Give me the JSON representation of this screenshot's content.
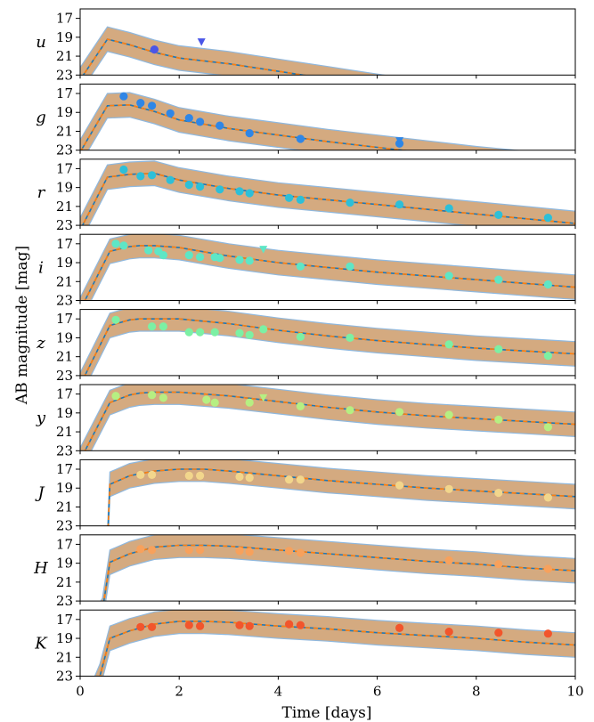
{
  "chart_data": {
    "type": "line",
    "xlabel": "Time [days]",
    "ylabel": "AB magnitude [mag]",
    "xlim": [
      0,
      10
    ],
    "ylim": [
      23,
      16
    ],
    "x_ticks": [
      "0",
      "2",
      "4",
      "6",
      "8",
      "10"
    ],
    "y_ticks": [
      "17",
      "19",
      "21",
      "23"
    ],
    "colors": {
      "model_line_dark": "#1f77b4",
      "model_line_orange": "#ff7f0e",
      "band_fill": "#cd9b6a",
      "band_edge": "#8fb8de"
    },
    "panels": [
      {
        "band": "u",
        "color": "#4a56e8",
        "model": {
          "x": [
            0,
            0.55,
            1.0,
            1.5,
            2.0,
            3.0,
            4.0,
            5.0,
            6.0,
            7.0,
            8.0,
            9.0,
            10.0
          ],
          "y": [
            23.5,
            19.2,
            19.8,
            20.6,
            21.2,
            21.8,
            22.6,
            23.4,
            24.2,
            25.0,
            25.8,
            26.6,
            27.4
          ]
        },
        "detections": [
          {
            "x": 1.5,
            "y": 20.3
          }
        ],
        "upper_limits": [
          {
            "x": 2.45,
            "y": 19.5
          }
        ]
      },
      {
        "band": "g",
        "color": "#2f86e6",
        "model": {
          "x": [
            0,
            0.55,
            1.0,
            1.5,
            2.0,
            3.0,
            4.0,
            5.0,
            6.0,
            7.0,
            8.0,
            9.0,
            10.0
          ],
          "y": [
            23.2,
            18.3,
            18.2,
            18.9,
            19.8,
            20.7,
            21.4,
            22.1,
            22.7,
            23.3,
            23.9,
            24.4,
            24.9
          ]
        },
        "detections": [
          {
            "x": 0.88,
            "y": 17.3
          },
          {
            "x": 1.22,
            "y": 18.0
          },
          {
            "x": 1.45,
            "y": 18.3
          },
          {
            "x": 1.82,
            "y": 19.1
          },
          {
            "x": 2.2,
            "y": 19.6
          },
          {
            "x": 2.42,
            "y": 20.0
          },
          {
            "x": 2.82,
            "y": 20.4
          },
          {
            "x": 3.42,
            "y": 21.2
          },
          {
            "x": 4.45,
            "y": 21.8
          },
          {
            "x": 6.45,
            "y": 22.3
          }
        ],
        "upper_limits": [
          {
            "x": 6.45,
            "y": 22.0
          }
        ]
      },
      {
        "band": "r",
        "color": "#2dbfd8",
        "model": {
          "x": [
            0,
            0.55,
            1.0,
            1.5,
            2.0,
            3.0,
            4.0,
            5.0,
            6.0,
            7.0,
            8.0,
            9.0,
            10.0
          ],
          "y": [
            23.5,
            17.9,
            17.6,
            17.5,
            18.2,
            19.1,
            19.8,
            20.3,
            20.8,
            21.3,
            21.8,
            22.3,
            22.8
          ]
        },
        "detections": [
          {
            "x": 0.88,
            "y": 17.1
          },
          {
            "x": 1.22,
            "y": 17.8
          },
          {
            "x": 1.45,
            "y": 17.7
          },
          {
            "x": 1.82,
            "y": 18.2
          },
          {
            "x": 2.2,
            "y": 18.7
          },
          {
            "x": 2.42,
            "y": 18.9
          },
          {
            "x": 2.82,
            "y": 19.2
          },
          {
            "x": 3.22,
            "y": 19.4
          },
          {
            "x": 3.42,
            "y": 19.6
          },
          {
            "x": 4.22,
            "y": 20.1
          },
          {
            "x": 4.45,
            "y": 20.3
          },
          {
            "x": 5.45,
            "y": 20.6
          },
          {
            "x": 6.45,
            "y": 20.8
          },
          {
            "x": 7.45,
            "y": 21.2
          },
          {
            "x": 8.45,
            "y": 21.9
          },
          {
            "x": 9.45,
            "y": 22.2
          }
        ],
        "upper_limits": []
      },
      {
        "band": "i",
        "color": "#5ee6c6",
        "model": {
          "x": [
            0,
            0.6,
            1.0,
            1.2,
            1.5,
            2.0,
            3.0,
            4.0,
            5.0,
            6.0,
            7.0,
            8.0,
            9.0,
            10.0
          ],
          "y": [
            24.0,
            17.8,
            17.3,
            17.2,
            17.2,
            17.4,
            18.3,
            19.0,
            19.5,
            20.0,
            20.4,
            20.8,
            21.2,
            21.6
          ]
        },
        "detections": [
          {
            "x": 0.72,
            "y": 17.0
          },
          {
            "x": 0.88,
            "y": 17.2
          },
          {
            "x": 1.38,
            "y": 17.7
          },
          {
            "x": 1.58,
            "y": 17.8
          },
          {
            "x": 1.68,
            "y": 18.2
          },
          {
            "x": 2.2,
            "y": 18.2
          },
          {
            "x": 2.42,
            "y": 18.4
          },
          {
            "x": 2.72,
            "y": 18.4
          },
          {
            "x": 2.82,
            "y": 18.5
          },
          {
            "x": 3.22,
            "y": 18.7
          },
          {
            "x": 3.42,
            "y": 18.8
          },
          {
            "x": 4.45,
            "y": 19.4
          },
          {
            "x": 5.45,
            "y": 19.4
          },
          {
            "x": 7.45,
            "y": 20.4
          },
          {
            "x": 8.45,
            "y": 20.8
          },
          {
            "x": 9.45,
            "y": 21.3
          }
        ],
        "upper_limits": [
          {
            "x": 3.7,
            "y": 17.6
          }
        ]
      },
      {
        "band": "z",
        "color": "#7cf0a4",
        "model": {
          "x": [
            0,
            0.6,
            1.0,
            1.2,
            1.5,
            2.0,
            3.0,
            4.0,
            5.0,
            6.0,
            7.0,
            8.0,
            9.0,
            10.0
          ],
          "y": [
            24.0,
            17.7,
            17.1,
            17.0,
            17.0,
            17.0,
            17.5,
            18.2,
            18.8,
            19.3,
            19.7,
            20.1,
            20.4,
            20.7
          ]
        },
        "detections": [
          {
            "x": 0.72,
            "y": 17.1
          },
          {
            "x": 1.45,
            "y": 17.8
          },
          {
            "x": 1.68,
            "y": 17.8
          },
          {
            "x": 2.2,
            "y": 18.4
          },
          {
            "x": 2.42,
            "y": 18.4
          },
          {
            "x": 2.72,
            "y": 18.4
          },
          {
            "x": 3.22,
            "y": 18.5
          },
          {
            "x": 3.42,
            "y": 18.7
          },
          {
            "x": 3.7,
            "y": 18.1
          },
          {
            "x": 4.45,
            "y": 18.9
          },
          {
            "x": 5.45,
            "y": 19.0
          },
          {
            "x": 7.45,
            "y": 19.7
          },
          {
            "x": 8.45,
            "y": 20.2
          },
          {
            "x": 9.45,
            "y": 20.9
          }
        ],
        "upper_limits": []
      },
      {
        "band": "y",
        "color": "#b6ef82",
        "model": {
          "x": [
            0,
            0.6,
            1.0,
            1.2,
            1.5,
            2.0,
            3.0,
            4.0,
            5.0,
            6.0,
            7.0,
            8.0,
            9.0,
            10.0
          ],
          "y": [
            24.0,
            17.9,
            17.1,
            16.9,
            16.8,
            16.8,
            17.2,
            17.8,
            18.4,
            18.9,
            19.3,
            19.6,
            19.9,
            20.2
          ]
        },
        "detections": [
          {
            "x": 0.72,
            "y": 17.2
          },
          {
            "x": 1.45,
            "y": 17.1
          },
          {
            "x": 1.68,
            "y": 17.4
          },
          {
            "x": 2.55,
            "y": 17.6
          },
          {
            "x": 2.72,
            "y": 17.9
          },
          {
            "x": 3.42,
            "y": 17.9
          },
          {
            "x": 4.45,
            "y": 18.3
          },
          {
            "x": 5.45,
            "y": 18.7
          },
          {
            "x": 6.45,
            "y": 18.9
          },
          {
            "x": 7.45,
            "y": 19.2
          },
          {
            "x": 8.45,
            "y": 19.7
          },
          {
            "x": 9.45,
            "y": 20.5
          }
        ],
        "upper_limits": [
          {
            "x": 3.7,
            "y": 17.4
          }
        ]
      },
      {
        "band": "J",
        "color": "#f2d68c",
        "model": {
          "x": [
            0,
            0.55,
            0.6,
            1.0,
            1.5,
            2.0,
            2.5,
            3.0,
            4.0,
            5.0,
            6.0,
            7.0,
            8.0,
            9.0,
            10.0
          ],
          "y": [
            28.0,
            25.0,
            18.6,
            17.7,
            17.2,
            17.0,
            17.0,
            17.2,
            17.7,
            18.2,
            18.6,
            19.0,
            19.3,
            19.6,
            19.9
          ]
        },
        "detections": [
          {
            "x": 1.22,
            "y": 17.6
          },
          {
            "x": 1.45,
            "y": 17.6
          },
          {
            "x": 2.2,
            "y": 17.7
          },
          {
            "x": 2.42,
            "y": 17.7
          },
          {
            "x": 3.22,
            "y": 17.8
          },
          {
            "x": 3.42,
            "y": 17.9
          },
          {
            "x": 4.22,
            "y": 18.1
          },
          {
            "x": 4.45,
            "y": 18.1
          },
          {
            "x": 6.45,
            "y": 18.7
          },
          {
            "x": 7.45,
            "y": 19.1
          },
          {
            "x": 8.45,
            "y": 19.5
          },
          {
            "x": 9.45,
            "y": 20.0
          }
        ],
        "upper_limits": []
      },
      {
        "band": "H",
        "color": "#f7a15c",
        "model": {
          "x": [
            0,
            0.45,
            0.6,
            1.0,
            1.5,
            2.0,
            2.5,
            3.0,
            4.0,
            5.0,
            6.0,
            7.0,
            8.0,
            9.0,
            10.0
          ],
          "y": [
            28.0,
            24.0,
            18.9,
            18.0,
            17.3,
            17.1,
            17.1,
            17.2,
            17.6,
            18.0,
            18.4,
            18.8,
            19.1,
            19.5,
            19.8
          ]
        },
        "detections": [
          {
            "x": 1.22,
            "y": 17.5
          },
          {
            "x": 1.45,
            "y": 17.6
          },
          {
            "x": 2.2,
            "y": 17.6
          },
          {
            "x": 2.42,
            "y": 17.6
          },
          {
            "x": 3.22,
            "y": 17.7
          },
          {
            "x": 3.42,
            "y": 17.8
          },
          {
            "x": 4.22,
            "y": 17.7
          },
          {
            "x": 4.45,
            "y": 17.9
          },
          {
            "x": 7.45,
            "y": 18.7
          },
          {
            "x": 8.45,
            "y": 19.1
          },
          {
            "x": 9.45,
            "y": 19.6
          }
        ],
        "upper_limits": []
      },
      {
        "band": "K",
        "color": "#f2552c",
        "model": {
          "x": [
            0,
            0.4,
            0.6,
            1.0,
            1.5,
            2.0,
            2.5,
            3.0,
            4.0,
            5.0,
            6.0,
            7.0,
            8.0,
            9.0,
            10.0
          ],
          "y": [
            28.0,
            23.0,
            19.0,
            18.2,
            17.5,
            17.2,
            17.2,
            17.3,
            17.7,
            18.0,
            18.4,
            18.7,
            19.0,
            19.4,
            19.7
          ]
        },
        "detections": [
          {
            "x": 1.22,
            "y": 17.8
          },
          {
            "x": 1.45,
            "y": 17.8
          },
          {
            "x": 2.2,
            "y": 17.6
          },
          {
            "x": 2.42,
            "y": 17.7
          },
          {
            "x": 3.22,
            "y": 17.6
          },
          {
            "x": 3.42,
            "y": 17.7
          },
          {
            "x": 4.22,
            "y": 17.5
          },
          {
            "x": 4.45,
            "y": 17.6
          },
          {
            "x": 6.45,
            "y": 17.9
          },
          {
            "x": 7.45,
            "y": 18.3
          },
          {
            "x": 8.45,
            "y": 18.4
          },
          {
            "x": 9.45,
            "y": 18.5
          }
        ],
        "upper_limits": []
      }
    ]
  }
}
